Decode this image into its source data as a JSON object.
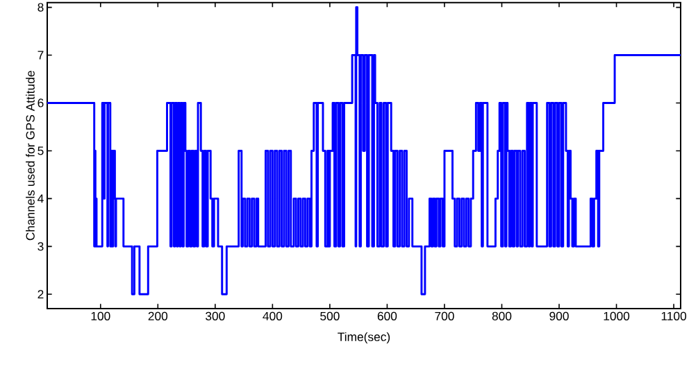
{
  "chart_data": {
    "type": "step",
    "xlabel": "Time(sec)",
    "ylabel": "Channels used for GPS Attitude",
    "xlim": [
      7,
      1112
    ],
    "ylim": [
      1.7,
      8.1
    ],
    "xticks": [
      100,
      200,
      300,
      400,
      500,
      600,
      700,
      800,
      900,
      1000,
      1100
    ],
    "yticks": [
      2,
      3,
      4,
      5,
      6,
      7,
      8
    ],
    "marker": "none",
    "line_style": "solid",
    "series": [
      {
        "color": "#0000ff",
        "x": [
          7,
          89,
          90,
          91,
          92,
          93,
          103,
          106,
          107,
          112,
          113,
          117,
          118,
          119,
          120,
          121,
          122,
          125,
          126,
          127,
          140,
          155,
          159,
          168,
          183,
          199,
          216,
          222,
          224,
          228,
          230,
          233,
          235,
          238,
          240,
          243,
          245,
          248,
          250,
          253,
          256,
          259,
          262,
          265,
          268,
          270,
          275,
          278,
          281,
          284,
          287,
          292,
          295,
          298,
          305,
          312,
          320,
          341,
          346,
          348,
          352,
          356,
          360,
          364,
          368,
          372,
          375,
          388,
          392,
          396,
          400,
          404,
          408,
          412,
          416,
          420,
          424,
          428,
          432,
          437,
          441,
          445,
          449,
          453,
          457,
          461,
          465,
          468,
          472,
          477,
          479,
          488,
          492,
          496,
          498,
          500,
          505,
          508,
          511,
          515,
          518,
          522,
          525,
          539,
          545,
          546,
          548,
          552,
          554,
          558,
          561,
          565,
          568,
          574,
          577,
          579,
          583,
          587,
          590,
          594,
          598,
          601,
          607,
          611,
          614,
          618,
          622,
          626,
          630,
          634,
          638,
          644,
          660,
          666,
          674,
          677,
          680,
          683,
          686,
          690,
          693,
          697,
          700,
          714,
          718,
          722,
          726,
          730,
          734,
          738,
          742,
          746,
          750,
          755,
          759,
          762,
          765,
          767,
          775,
          789,
          793,
          796,
          799,
          802,
          806,
          808,
          810,
          813,
          816,
          819,
          822,
          826,
          828,
          832,
          836,
          840,
          844,
          847,
          849,
          852,
          854,
          861,
          879,
          883,
          886,
          890,
          893,
          897,
          900,
          904,
          907,
          912,
          915,
          917,
          920,
          923,
          926,
          929,
          955,
          958,
          961,
          965,
          968,
          970,
          977,
          997,
          1112
        ],
        "values": [
          6,
          3,
          5,
          3,
          4,
          3,
          6,
          4,
          6,
          3,
          6,
          3,
          5,
          3,
          5,
          3,
          5,
          4,
          3,
          4,
          3,
          2,
          3,
          2,
          3,
          5,
          6,
          3,
          6,
          3,
          6,
          3,
          6,
          3,
          6,
          3,
          6,
          5,
          3,
          5,
          3,
          5,
          3,
          5,
          3,
          6,
          5,
          3,
          5,
          3,
          5,
          4,
          3,
          4,
          3,
          2,
          3,
          5,
          3,
          4,
          3,
          4,
          3,
          4,
          3,
          4,
          3,
          5,
          3,
          5,
          3,
          5,
          3,
          5,
          3,
          5,
          3,
          5,
          3,
          4,
          3,
          4,
          3,
          4,
          3,
          4,
          3,
          5,
          6,
          3,
          6,
          5,
          3,
          5,
          3,
          5,
          6,
          3,
          6,
          3,
          6,
          3,
          6,
          7,
          3,
          8,
          7,
          3,
          7,
          5,
          7,
          3,
          7,
          3,
          7,
          6,
          3,
          6,
          3,
          6,
          3,
          6,
          5,
          3,
          5,
          3,
          5,
          3,
          5,
          3,
          4,
          3,
          2,
          3,
          4,
          3,
          4,
          3,
          4,
          3,
          4,
          3,
          5,
          4,
          3,
          4,
          3,
          4,
          3,
          4,
          3,
          4,
          5,
          6,
          5,
          6,
          3,
          6,
          3,
          4,
          5,
          6,
          3,
          6,
          3,
          6,
          5,
          3,
          5,
          3,
          5,
          3,
          5,
          3,
          5,
          3,
          6,
          3,
          6,
          3,
          6,
          3,
          6,
          3,
          6,
          3,
          6,
          3,
          6,
          3,
          6,
          5,
          3,
          5,
          4,
          3,
          4,
          3,
          4,
          3,
          4,
          5,
          3,
          5,
          6,
          7,
          7
        ]
      }
    ]
  }
}
